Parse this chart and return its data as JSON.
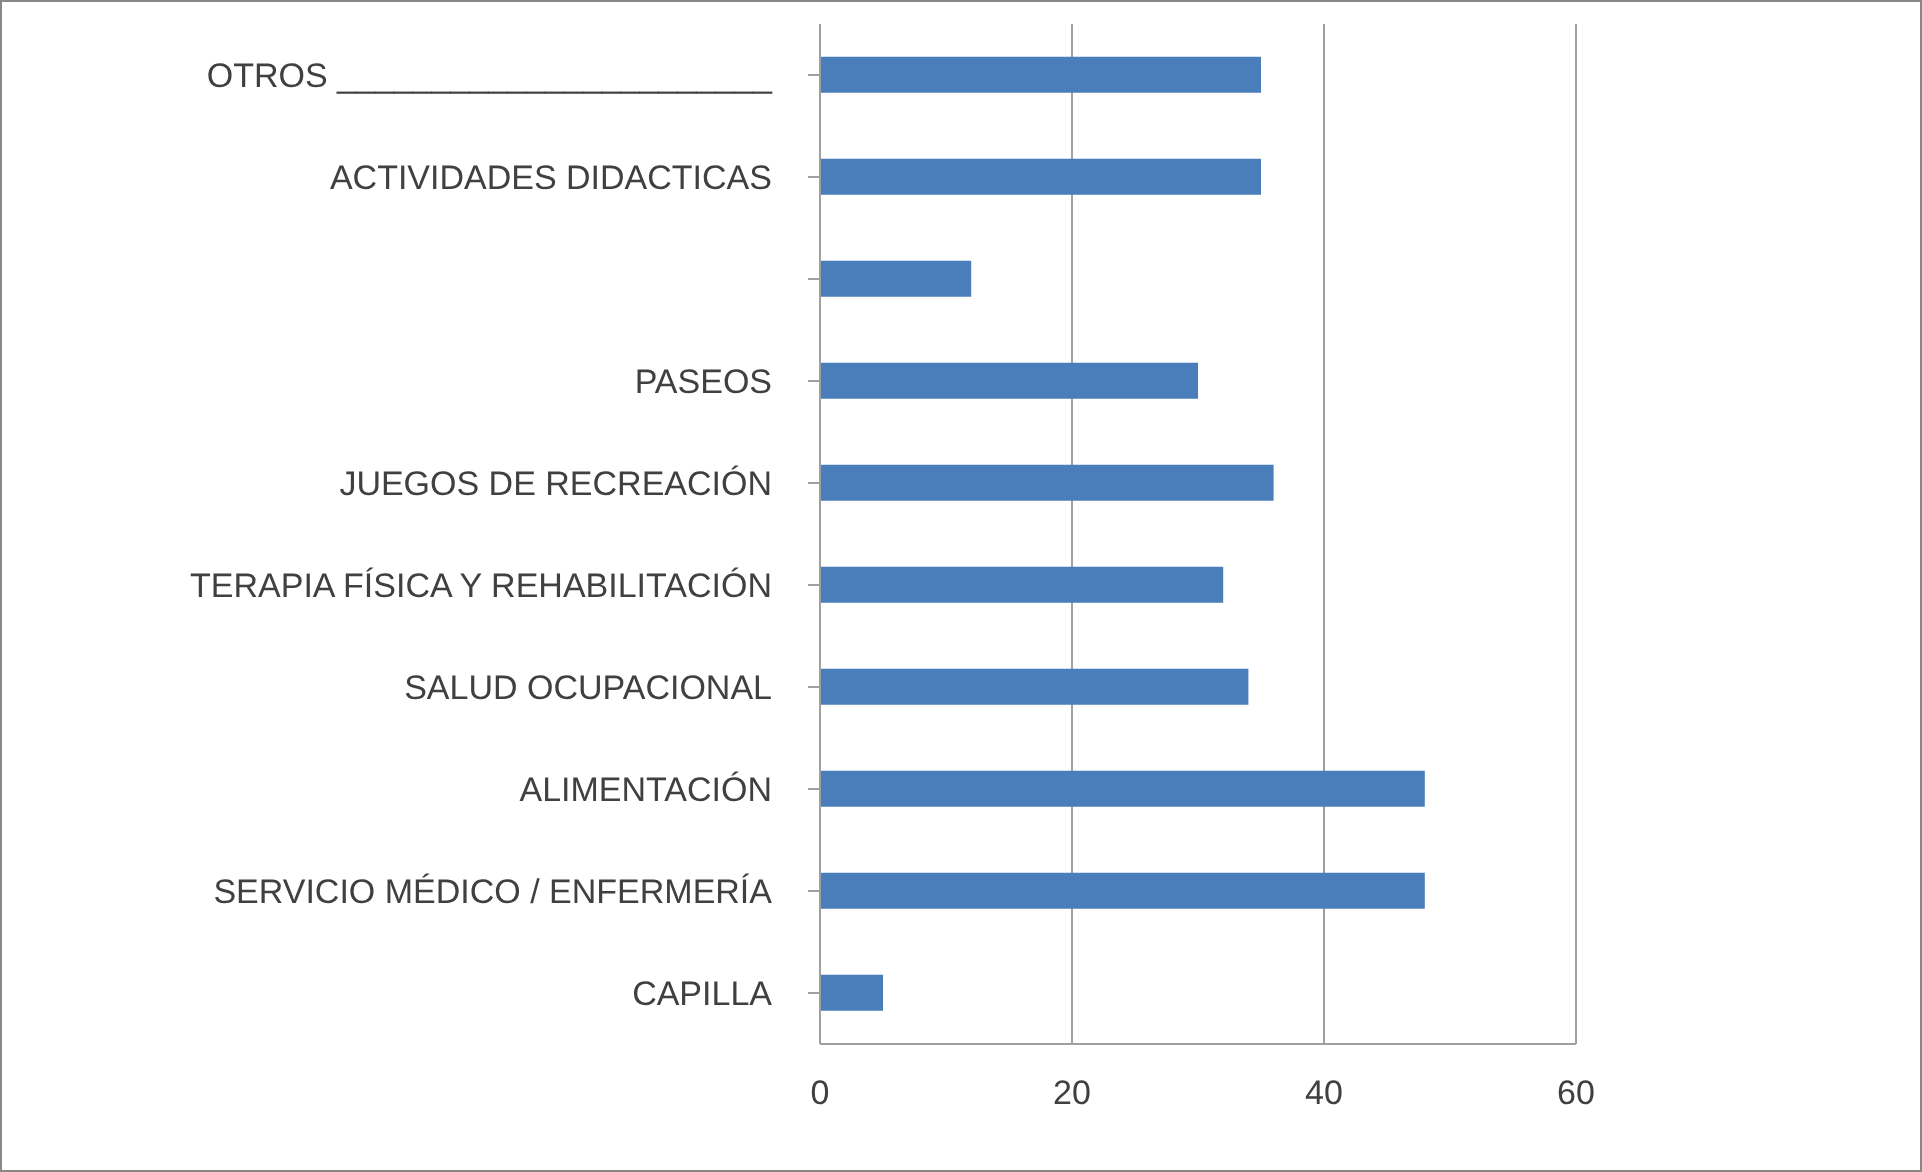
{
  "chart_data": {
    "type": "bar",
    "orientation": "horizontal",
    "categories": [
      "OTROS _______________________",
      "ACTIVIDADES DIDACTICAS",
      null,
      "PASEOS",
      "JUEGOS DE RECREACIÓN",
      "TERAPIA FÍSICA Y REHABILITACIÓN",
      "SALUD OCUPACIONAL",
      "ALIMENTACIÓN",
      "SERVICIO MÉDICO / ENFERMERÍA",
      "CAPILLA"
    ],
    "values": [
      35,
      35,
      12,
      30,
      36,
      32,
      34,
      48,
      48,
      5
    ],
    "color": "#4a7ebb",
    "xlim": [
      0,
      60
    ],
    "xticks": [
      0,
      20,
      40,
      60
    ],
    "grid": "x"
  }
}
